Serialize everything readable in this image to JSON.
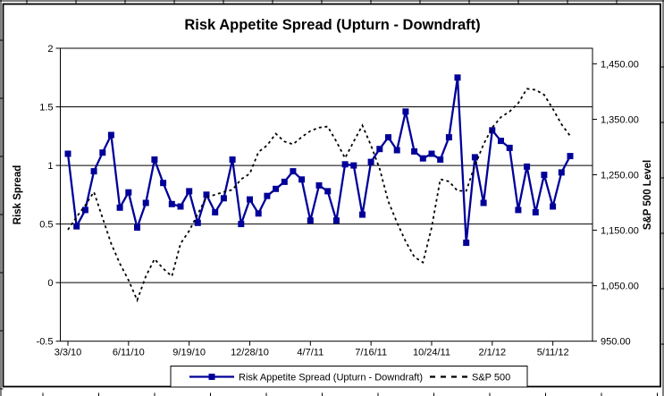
{
  "chart_data": {
    "type": "line",
    "title": "Risk Appetite Spread (Upturn - Downdraft)",
    "x_axis": {
      "tick_labels": [
        "3/3/10",
        "6/11/10",
        "9/19/10",
        "12/28/10",
        "4/7/11",
        "7/16/11",
        "10/24/11",
        "2/1/12",
        "5/11/12"
      ],
      "tick_indices": [
        0,
        7,
        14,
        21,
        28,
        35,
        42,
        49,
        56
      ],
      "n_points": 59
    },
    "left_axis": {
      "label": "Risk Spread",
      "ticks": [
        2,
        1.5,
        1,
        0.5,
        0,
        -0.5
      ],
      "ylim": [
        -0.5,
        2
      ]
    },
    "right_axis": {
      "label": "S&P 500 Level",
      "tick_labels": [
        "1,450.00",
        "1,350.00",
        "1,250.00",
        "1,150.00",
        "1,050.00",
        "950.00"
      ],
      "tick_values": [
        1450,
        1350,
        1250,
        1150,
        1050,
        950
      ],
      "ylim": [
        950,
        1478
      ]
    },
    "grid": true,
    "legend_position": "bottom",
    "series": [
      {
        "name": "Risk Appetite Spread (Upturn - Downdraft)",
        "axis": "left",
        "style": "solid",
        "marker": "square",
        "color": "#000099",
        "values": [
          1.1,
          0.48,
          0.62,
          0.95,
          1.11,
          1.26,
          0.64,
          0.77,
          0.47,
          0.68,
          1.05,
          0.85,
          0.67,
          0.65,
          0.78,
          0.51,
          0.75,
          0.6,
          0.72,
          1.05,
          0.5,
          0.71,
          0.59,
          0.74,
          0.8,
          0.86,
          0.95,
          0.88,
          0.53,
          0.83,
          0.78,
          0.53,
          1.01,
          1.0,
          0.58,
          1.03,
          1.14,
          1.24,
          1.13,
          1.46,
          1.12,
          1.06,
          1.1,
          1.05,
          1.24,
          1.75,
          0.34,
          1.07,
          0.68,
          1.3,
          1.21,
          1.15,
          0.62,
          0.99,
          0.6,
          0.92,
          0.65,
          0.94,
          1.08
        ]
      },
      {
        "name": "S&P 500",
        "axis": "right",
        "style": "dashed",
        "marker": "none",
        "color": "#000000",
        "values": [
          1151,
          1174,
          1195,
          1219,
          1172,
          1126,
          1090,
          1060,
          1024,
          1067,
          1098,
          1081,
          1067,
          1126,
          1149,
          1179,
          1210,
          1214,
          1219,
          1223,
          1242,
          1252,
          1291,
          1303,
          1324,
          1310,
          1305,
          1318,
          1329,
          1335,
          1337,
          1310,
          1280,
          1310,
          1339,
          1303,
          1261,
          1202,
          1164,
          1130,
          1102,
          1092,
          1155,
          1242,
          1238,
          1221,
          1221,
          1267,
          1305,
          1335,
          1354,
          1364,
          1379,
          1405,
          1403,
          1394,
          1369,
          1341,
          1320
        ]
      }
    ]
  }
}
